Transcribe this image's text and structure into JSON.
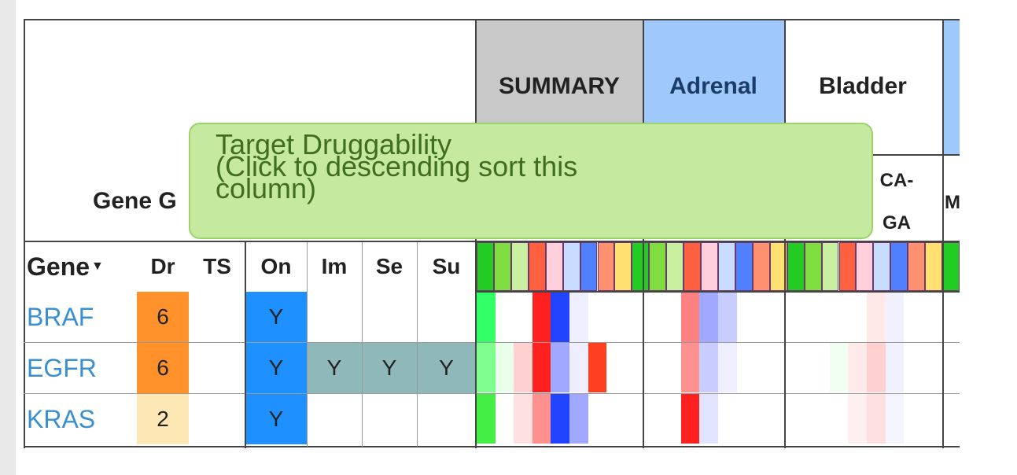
{
  "header": {
    "gene_group": "Gene G",
    "summary": "SUMMARY",
    "adrenal": "Adrenal",
    "bladder": "Bladder",
    "sub_a": "CA-",
    "sub_b": "GA",
    "sub_m": "M"
  },
  "columns": [
    "Gene",
    "Dr",
    "TS",
    "On",
    "Im",
    "Se",
    "Su"
  ],
  "rows": [
    {
      "gene": "BRAF",
      "dr": "6",
      "ts": "",
      "on": "Y",
      "im": "",
      "se": "",
      "su": ""
    },
    {
      "gene": "EGFR",
      "dr": "6",
      "ts": "",
      "on": "Y",
      "im": "Y",
      "se": "Y",
      "su": "Y"
    },
    {
      "gene": "KRAS",
      "dr": "2",
      "ts": "",
      "on": "Y",
      "im": "",
      "se": "",
      "su": ""
    }
  ],
  "tooltip": {
    "line1": "Target Druggability",
    "line2": "(Click to descending sort this",
    "line3": "column)"
  },
  "colors": {
    "summary_bg": "#c8c8c8",
    "tissue_blue": "#9ec9fa",
    "dr_high": "#ff922b",
    "dr_low": "#fde7b5",
    "on_blue": "#1e90ff",
    "teal": "#8fb8b8"
  }
}
